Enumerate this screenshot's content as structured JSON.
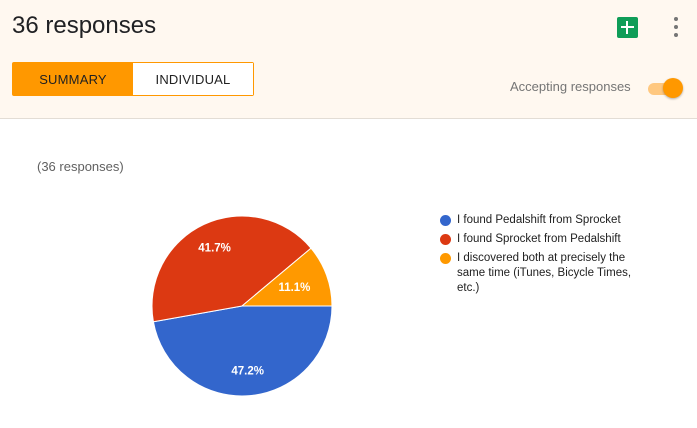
{
  "header": {
    "title": "36 responses",
    "sheets_icon": "google-sheets-icon",
    "more_icon": "more-vert-icon"
  },
  "tabs": [
    {
      "label": "SUMMARY",
      "active": true
    },
    {
      "label": "INDIVIDUAL",
      "active": false
    }
  ],
  "accepting": {
    "label": "Accepting responses",
    "on": true
  },
  "question": {
    "response_count": "(36 responses)"
  },
  "chart_data": {
    "type": "pie",
    "categories": [
      "I found Pedalshift from Sprocket",
      "I found Sprocket from Pedalshift",
      "I discovered both at precisely the same time (iTunes, Bicycle Times, etc.)"
    ],
    "values": [
      47.2,
      41.7,
      11.1
    ],
    "value_labels": [
      "47.2%",
      "41.7%",
      "11.1%"
    ],
    "colors": [
      "#3366cc",
      "#dc3912",
      "#ff9900"
    ],
    "legend": "right"
  }
}
